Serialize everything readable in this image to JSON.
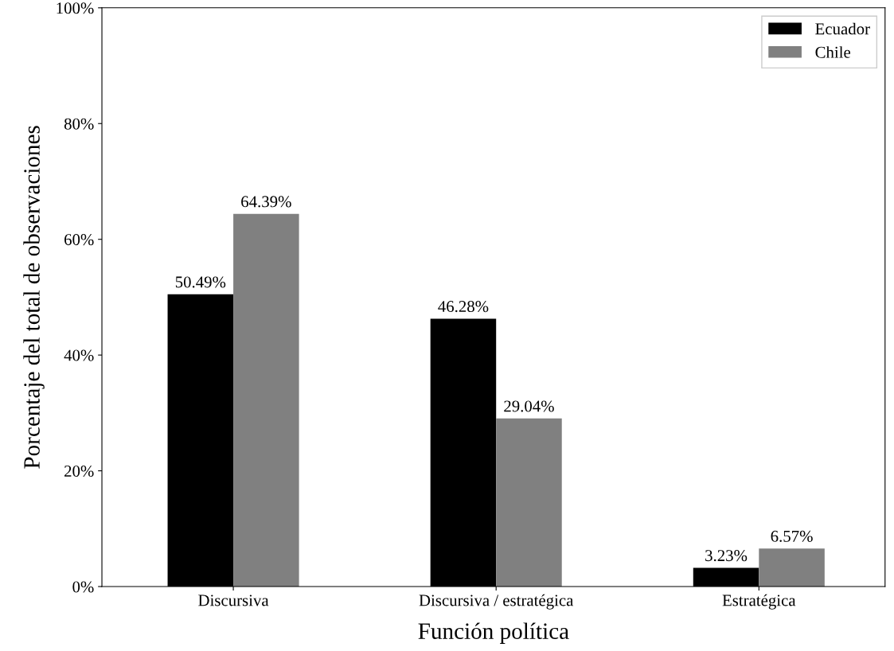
{
  "chart_data": {
    "type": "bar",
    "xlabel": "Función política",
    "ylabel": "Porcentaje del total de observaciones",
    "categories": [
      "Discursiva",
      "Discursiva / estratégica",
      "Estratégica"
    ],
    "series": [
      {
        "name": "Ecuador",
        "color": "#000000",
        "values": [
          50.49,
          46.28,
          3.23
        ],
        "value_labels": [
          "50.49%",
          "46.28%",
          "3.23%"
        ]
      },
      {
        "name": "Chile",
        "color": "#808080",
        "values": [
          64.39,
          29.04,
          6.57
        ],
        "value_labels": [
          "64.39%",
          "29.04%",
          "6.57%"
        ]
      }
    ],
    "ylim": [
      0,
      100
    ],
    "yticks": [
      {
        "value": 0,
        "label": "0%"
      },
      {
        "value": 20,
        "label": "20%"
      },
      {
        "value": 40,
        "label": "40%"
      },
      {
        "value": 60,
        "label": "60%"
      },
      {
        "value": 80,
        "label": "80%"
      },
      {
        "value": 100,
        "label": "100%"
      }
    ],
    "grid": false,
    "legend": "top right"
  }
}
